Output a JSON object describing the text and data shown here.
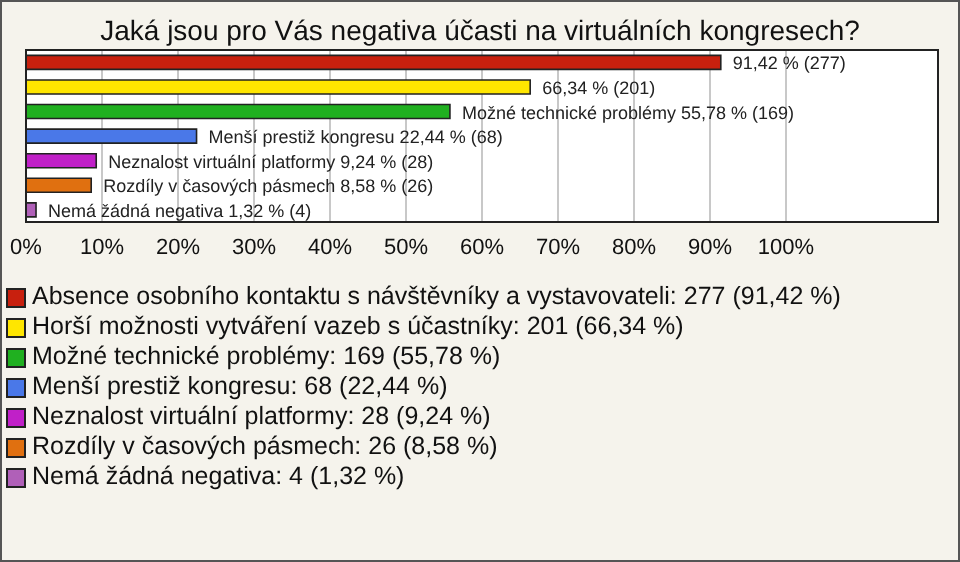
{
  "chart_data": {
    "type": "bar",
    "orientation": "horizontal",
    "stacked": true,
    "title": "Jaká jsou pro Vás negativa účasti na virtuálních kongresech?",
    "categories": [
      null,
      null,
      null,
      null,
      null,
      null,
      null
    ],
    "series": [
      {
        "name": "Absence osobního kontaktu s návštěvníky a vystavovateli: 277 (91,42 %)",
        "color": "#c8200e",
        "values": [
          91.42,
          null,
          null,
          null,
          null,
          null,
          null
        ],
        "value_labels": [
          "91,42 % (277)",
          null,
          null,
          null,
          null,
          null,
          null
        ]
      },
      {
        "name": "Horší možnosti vytváření vazeb s účastníky: 201 (66,34 %)",
        "color": "#ffe600",
        "values": [
          null,
          66.34,
          null,
          null,
          null,
          null,
          null
        ],
        "value_labels": [
          null,
          "66,34 % (201)",
          null,
          null,
          null,
          null,
          null
        ]
      },
      {
        "name": "Možné technické problémy: 169 (55,78 %)",
        "color": "#20b020",
        "values": [
          null,
          null,
          55.78,
          null,
          null,
          null,
          null
        ],
        "value_labels": [
          null,
          null,
          "Možné technické problémy 55,78 % (169)",
          null,
          null,
          null,
          null
        ]
      },
      {
        "name": "Menší prestiž kongresu: 68 (22,44 %)",
        "color": "#4a78e8",
        "values": [
          null,
          null,
          null,
          22.44,
          null,
          null,
          null
        ],
        "value_labels": [
          null,
          null,
          null,
          "Menší prestiž kongresu 22,44 % (68)",
          null,
          null,
          null
        ]
      },
      {
        "name": "Neznalost virtuální platformy: 28 (9,24 %)",
        "color": "#c020c8",
        "values": [
          null,
          null,
          null,
          null,
          9.24,
          null,
          null
        ],
        "value_labels": [
          null,
          null,
          null,
          null,
          "Neznalost virtuální platformy 9,24 % (28)",
          null,
          null
        ]
      },
      {
        "name": "Rozdíly v časových pásmech: 26 (8,58 %)",
        "color": "#e07010",
        "values": [
          null,
          null,
          null,
          null,
          null,
          8.58,
          null
        ],
        "value_labels": [
          null,
          null,
          null,
          null,
          null,
          "Rozdíly v časových pásmech 8,58 % (26)",
          null
        ]
      },
      {
        "name": "Nemá žádná negativa: 4 (1,32 %)",
        "color": "#b060b8",
        "values": [
          null,
          null,
          null,
          null,
          null,
          null,
          1.32
        ],
        "value_labels": [
          null,
          null,
          null,
          null,
          null,
          null,
          "Nemá žádná negativa 1,32 % (4)"
        ]
      }
    ],
    "xlim": [
      0,
      120
    ],
    "xticks": [
      {
        "value": 0,
        "label": "0%"
      },
      {
        "value": 10,
        "label": "10%"
      },
      {
        "value": 20,
        "label": "20%"
      },
      {
        "value": 30,
        "label": "30%"
      },
      {
        "value": 40,
        "label": "40%"
      },
      {
        "value": 50,
        "label": "50%"
      },
      {
        "value": 60,
        "label": "60%"
      },
      {
        "value": 70,
        "label": "70%"
      },
      {
        "value": 80,
        "label": "80%"
      },
      {
        "value": 90,
        "label": "90%"
      },
      {
        "value": 100,
        "label": "100%"
      }
    ],
    "grid": "x",
    "legend": "bottom",
    "tick_labels": "x"
  }
}
